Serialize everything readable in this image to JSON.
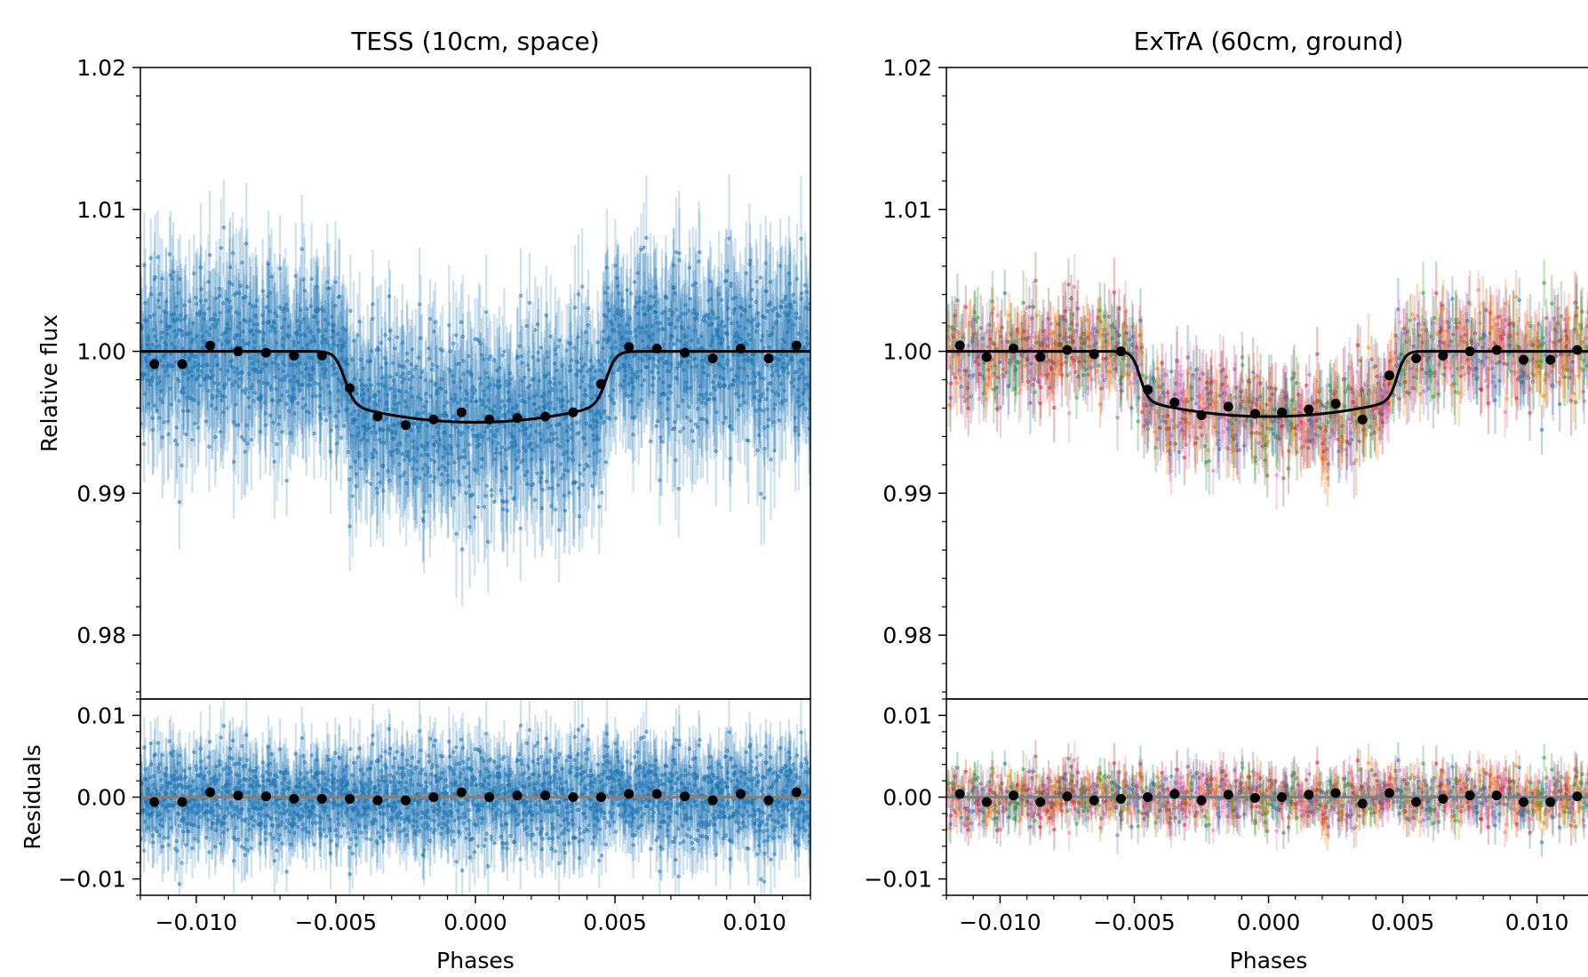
{
  "chart_data": [
    {
      "type": "scatter",
      "title": "TESS (10cm, space)",
      "xlabel": "Phases",
      "ylabel": "Relative flux",
      "ylabel_residuals": "Residuals",
      "xlim": [
        -0.012,
        0.012
      ],
      "ylim": [
        0.9755,
        1.02
      ],
      "residuals_ylim": [
        -0.012,
        0.012
      ],
      "x_ticks": [
        "−0.010",
        "−0.005",
        "0.000",
        "0.005",
        "0.010"
      ],
      "y_ticks": [
        "0.98",
        "0.99",
        "1.00",
        "1.01",
        "1.02"
      ],
      "residual_y_ticks": [
        "−0.01",
        "0.00",
        "0.01"
      ],
      "raw_data": {
        "color": "#1f77b4",
        "scatter_sigma": 0.0035,
        "n_points": 2200
      },
      "model": {
        "baseline": 1.0,
        "depth": 0.005,
        "ingress_center": -0.0047,
        "egress_center": 0.0047,
        "ingress_width": 0.0007
      },
      "binned": {
        "x": [
          -0.0115,
          -0.0105,
          -0.0095,
          -0.0085,
          -0.0075,
          -0.0065,
          -0.0055,
          -0.0045,
          -0.0035,
          -0.0025,
          -0.0015,
          -0.0005,
          0.0005,
          0.0015,
          0.0025,
          0.0035,
          0.0045,
          0.0055,
          0.0065,
          0.0075,
          0.0085,
          0.0095,
          0.0105,
          0.0115
        ],
        "y": [
          0.9991,
          0.9991,
          1.0004,
          1.0,
          0.9999,
          0.9997,
          0.9997,
          0.9974,
          0.9954,
          0.9948,
          0.9952,
          0.9957,
          0.9952,
          0.9953,
          0.9954,
          0.9957,
          0.9977,
          1.0003,
          1.0002,
          0.9999,
          0.9995,
          1.0002,
          0.9995,
          1.0004
        ],
        "residuals": [
          -0.0006,
          -0.0006,
          0.0006,
          0.0002,
          0.0001,
          -0.0002,
          -0.0002,
          -0.0002,
          -0.0004,
          -0.0004,
          0.0,
          0.0006,
          0.0,
          0.0002,
          0.0002,
          0.0,
          0.0,
          0.0004,
          0.0004,
          0.0001,
          -0.0004,
          0.0004,
          -0.0004,
          0.0006
        ]
      }
    },
    {
      "type": "scatter",
      "title": "ExTrA (60cm, ground)",
      "xlabel": "Phases",
      "ylabel": "",
      "xlim": [
        -0.012,
        0.012
      ],
      "ylim": [
        0.9755,
        1.02
      ],
      "residuals_ylim": [
        -0.012,
        0.012
      ],
      "x_ticks": [
        "−0.010",
        "−0.005",
        "0.000",
        "0.005",
        "0.010"
      ],
      "y_ticks": [
        "0.98",
        "0.99",
        "1.00",
        "1.01",
        "1.02"
      ],
      "residual_y_ticks": [
        "−0.01",
        "0.00",
        "0.01"
      ],
      "raw_data": {
        "colors": [
          "#1f77b4",
          "#ff7f0e",
          "#2ca02c",
          "#d62728",
          "#9467bd",
          "#8c564b",
          "#e377c2"
        ],
        "scatter_sigma": 0.0019,
        "n_points": 1300
      },
      "model": {
        "baseline": 1.0,
        "depth": 0.0046,
        "ingress_center": -0.0048,
        "egress_center": 0.0048,
        "ingress_width": 0.0006
      },
      "binned": {
        "x": [
          -0.0115,
          -0.0105,
          -0.0095,
          -0.0085,
          -0.0075,
          -0.0065,
          -0.0055,
          -0.0045,
          -0.0035,
          -0.0025,
          -0.0015,
          -0.0005,
          0.0005,
          0.0015,
          0.0025,
          0.0035,
          0.0045,
          0.0055,
          0.0065,
          0.0075,
          0.0085,
          0.0095,
          0.0105,
          0.0115
        ],
        "y": [
          1.0004,
          0.9996,
          1.0002,
          0.9996,
          1.0001,
          0.9998,
          1.0,
          0.9973,
          0.9964,
          0.9955,
          0.9961,
          0.9956,
          0.9957,
          0.9959,
          0.9963,
          0.9952,
          0.9983,
          0.9995,
          0.9997,
          1.0,
          1.0001,
          0.9994,
          0.9994,
          1.0001
        ],
        "residuals": [
          0.0004,
          -0.0006,
          0.0002,
          -0.0006,
          0.0001,
          -0.0004,
          -0.0002,
          0.0,
          0.0004,
          -0.0004,
          0.0003,
          -0.0001,
          0.0,
          0.0003,
          0.0005,
          -0.0008,
          0.0005,
          -0.0006,
          -0.0002,
          0.0002,
          0.0002,
          -0.0006,
          -0.0006,
          0.0001
        ]
      }
    }
  ]
}
